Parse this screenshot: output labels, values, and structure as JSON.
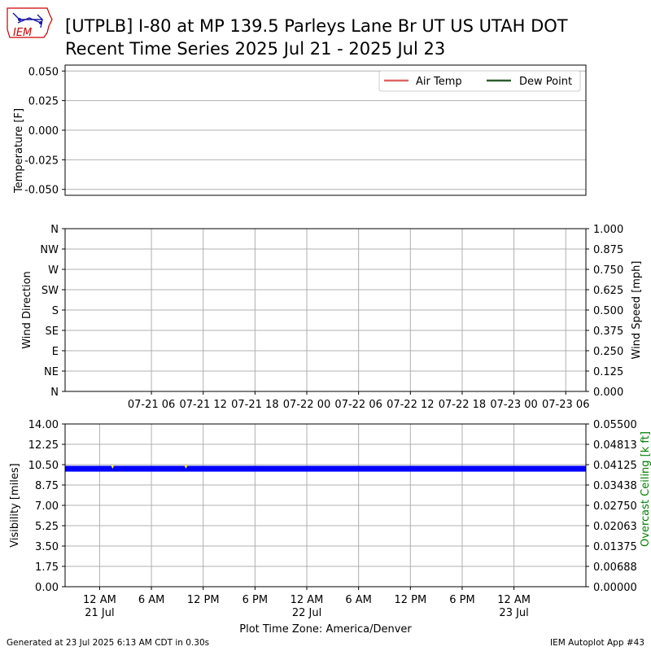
{
  "title": {
    "line1": "[UTPLB] I-80 at MP 139.5 Parleys Lane Br UT US UTAH DOT",
    "line2": "Recent Time Series 2025 Jul 21 - 2025 Jul 23"
  },
  "logo": {
    "text": "IEM",
    "color": "#cc0000",
    "icon": "iowa-state-outline-icon"
  },
  "footer": {
    "left": "Generated at 23 Jul 2025 6:13 AM CDT in 0.30s",
    "right": "IEM Autoplot App #43"
  },
  "colors": {
    "air_temp": "#e06666",
    "dew_point": "#2e5e2e",
    "visibility": "#0000ff",
    "gust": "#ffff00",
    "grid": "#b0b0b0",
    "ceiling_axis": "#008000"
  },
  "chart_data": [
    {
      "type": "line",
      "ylabel": "Temperature [F]",
      "ylim": [
        -0.055,
        0.055
      ],
      "yticks": [
        "0.050",
        "0.025",
        "0.000",
        "-0.025",
        "-0.050"
      ],
      "ytick_values": [
        0.05,
        0.025,
        0.0,
        -0.025,
        -0.05
      ],
      "grid": true,
      "legend_position": "top-right",
      "series": [
        {
          "name": "Air Temp",
          "values": []
        },
        {
          "name": "Dew Point",
          "values": []
        }
      ]
    },
    {
      "type": "scatter",
      "ylabel": "Wind Direction",
      "ylabel_right": "Wind Speed [mph]",
      "yticks": [
        "N",
        "NW",
        "W",
        "SW",
        "S",
        "SE",
        "E",
        "NE",
        "N"
      ],
      "yticks_right": [
        "1.000",
        "0.875",
        "0.750",
        "0.625",
        "0.500",
        "0.375",
        "0.250",
        "0.125",
        "0.000"
      ],
      "ylim_right": [
        0,
        1
      ],
      "xticks": [
        "07-21 06",
        "07-21 12",
        "07-21 18",
        "07-22 00",
        "07-22 06",
        "07-22 12",
        "07-22 18",
        "07-23 00",
        "07-23 06"
      ],
      "grid": true,
      "series": []
    },
    {
      "type": "scatter",
      "ylabel": "Visibility [miles]",
      "ylabel_right": "Overcast Ceiling [k ft]",
      "ylim": [
        0,
        14
      ],
      "yticks": [
        "14.00",
        "12.25",
        "10.50",
        "8.75",
        "7.00",
        "5.25",
        "3.50",
        "1.75",
        "0.00"
      ],
      "yticks_right": [
        "0.05500",
        "0.04813",
        "0.04125",
        "0.03438",
        "0.02750",
        "0.02063",
        "0.01375",
        "0.00688",
        "0.00000"
      ],
      "x_range": [
        "2025-07-20 20:00",
        "2025-07-23 08:20"
      ],
      "xticks": [
        {
          "time": "2025-07-21 00:00",
          "label": "12 AM",
          "sublabel": "21 Jul"
        },
        {
          "time": "2025-07-21 06:00",
          "label": "6 AM",
          "sublabel": ""
        },
        {
          "time": "2025-07-21 12:00",
          "label": "12 PM",
          "sublabel": ""
        },
        {
          "time": "2025-07-21 18:00",
          "label": "6 PM",
          "sublabel": ""
        },
        {
          "time": "2025-07-22 00:00",
          "label": "12 AM",
          "sublabel": "22 Jul"
        },
        {
          "time": "2025-07-22 06:00",
          "label": "6 AM",
          "sublabel": ""
        },
        {
          "time": "2025-07-22 12:00",
          "label": "12 PM",
          "sublabel": ""
        },
        {
          "time": "2025-07-22 18:00",
          "label": "6 PM",
          "sublabel": ""
        },
        {
          "time": "2025-07-23 00:00",
          "label": "12 AM",
          "sublabel": "23 Jul"
        }
      ],
      "xlabel": "Plot Time Zone: America/Denver",
      "grid": true,
      "series": [
        {
          "values_range": [
            9.9,
            10.4
          ],
          "value_typical": 10.0,
          "time_start": "2025-07-20 20:00",
          "time_end": "2025-07-23 08:20"
        }
      ]
    }
  ]
}
